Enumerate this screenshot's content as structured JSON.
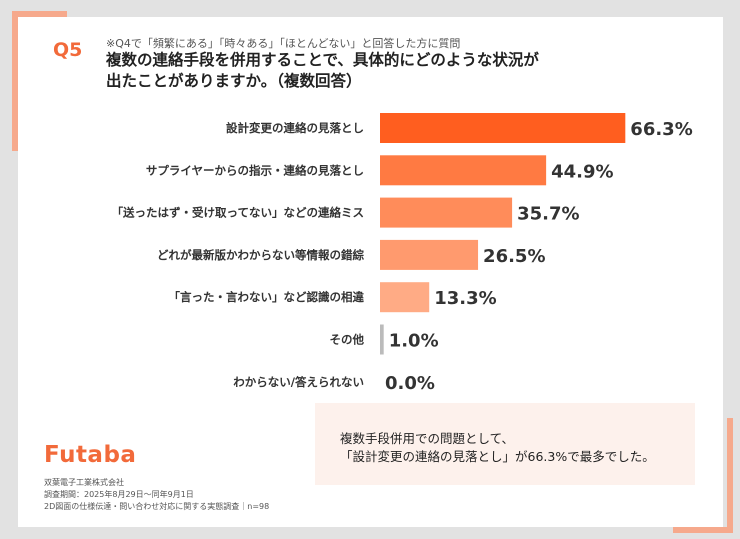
{
  "question": {
    "label": "Q5",
    "note": "※Q4で「頻繁にある」「時々ある」「ほとんどない」と回答した方に質問",
    "title_line1": "複数の連絡手段を併用することで、具体的にどのような状況が",
    "title_line2": "出たことがありますか。（複数回答）"
  },
  "chart_data": {
    "type": "bar",
    "orientation": "horizontal",
    "categories": [
      "設計変更の連絡の見落とし",
      "サプライヤーからの指示・連絡の見落とし",
      "「送ったはず・受け取ってない」などの連絡ミス",
      "どれが最新版かわからない等情報の錯綜",
      "「言った・言わない」など認識の相違",
      "その他",
      "わからない/答えられない"
    ],
    "values": [
      66.3,
      44.9,
      35.7,
      26.5,
      13.3,
      1.0,
      0.0
    ],
    "value_labels": [
      "66.3%",
      "44.9%",
      "35.7%",
      "26.5%",
      "13.3%",
      "1.0%",
      "0.0%"
    ],
    "unit": "%",
    "xlim": [
      0,
      100
    ],
    "grid": false,
    "legend": "none",
    "colors": [
      "#ff5e1f",
      "#ff7a42",
      "#ff8c5a",
      "#ff9a6e",
      "#ffab85",
      "#bbbbbb",
      "#bbbbbb"
    ]
  },
  "summary": {
    "line1": "複数手段併用での問題として、",
    "line2": "「設計変更の連絡の見落とし」が66.3%で最多でした。"
  },
  "footer": {
    "logo": "Futaba",
    "company": "双葉電子工業株式会社",
    "period": "調査期間：2025年8月29日～同年9月1日",
    "survey": "2D図面の仕様伝達・問い合わせ対応に関する実態調査｜n=98"
  }
}
